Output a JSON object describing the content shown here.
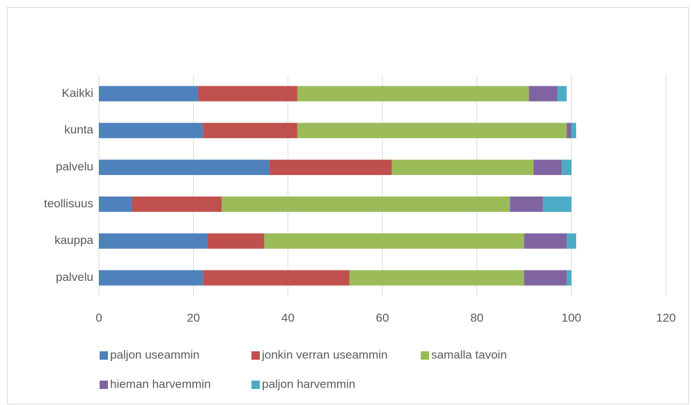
{
  "chart_data": {
    "type": "stacked-bar-horizontal",
    "categories": [
      "Kaikki",
      "kunta",
      "palvelu",
      "teollisuus",
      "kauppa",
      "palvelu"
    ],
    "series": [
      {
        "name": "paljon useammin",
        "color": "#4f81bd",
        "values": [
          21,
          22,
          36,
          7,
          23,
          22
        ]
      },
      {
        "name": "jonkin verran useammin",
        "color": "#c0504d",
        "values": [
          21,
          20,
          26,
          19,
          12,
          31
        ]
      },
      {
        "name": "samalla tavoin",
        "color": "#9bbb59",
        "values": [
          49,
          57,
          30,
          61,
          55,
          37
        ]
      },
      {
        "name": "hieman harvemmin",
        "color": "#8064a2",
        "values": [
          6,
          1,
          6,
          7,
          9,
          9
        ]
      },
      {
        "name": "paljon harvemmin",
        "color": "#4bacc6",
        "values": [
          2,
          1,
          2,
          6,
          2,
          1
        ]
      }
    ],
    "xlim": [
      0,
      120
    ],
    "xticks": [
      0,
      20,
      40,
      60,
      80,
      100,
      120
    ],
    "grid": true,
    "legend": "bottom"
  }
}
